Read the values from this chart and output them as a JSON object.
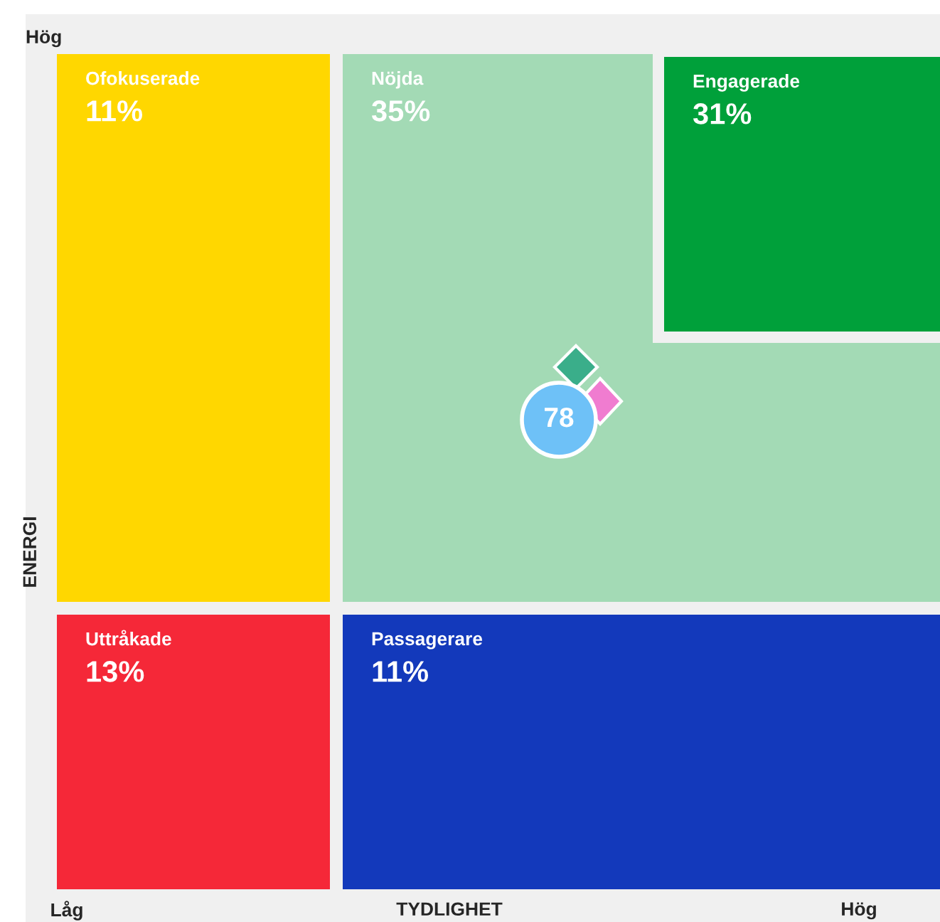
{
  "chart_data": {
    "type": "other",
    "xlabel": "TYDLIGHET",
    "ylabel": "ENERGI",
    "categories": [
      "Ofokuserade",
      "Nöjda",
      "Engagerade",
      "Uttråkade",
      "Passagerare"
    ],
    "values": [
      11,
      35,
      31,
      13,
      11
    ],
    "value_labels": [
      "11%",
      "35%",
      "31%",
      "13%",
      "11%"
    ],
    "colors": [
      "#ffd700",
      "#a3dab5",
      "#00a03a",
      "#f52838",
      "#1339bb"
    ],
    "annotations": [
      "Hög",
      "Låg",
      "Hög",
      "78"
    ]
  }
}
